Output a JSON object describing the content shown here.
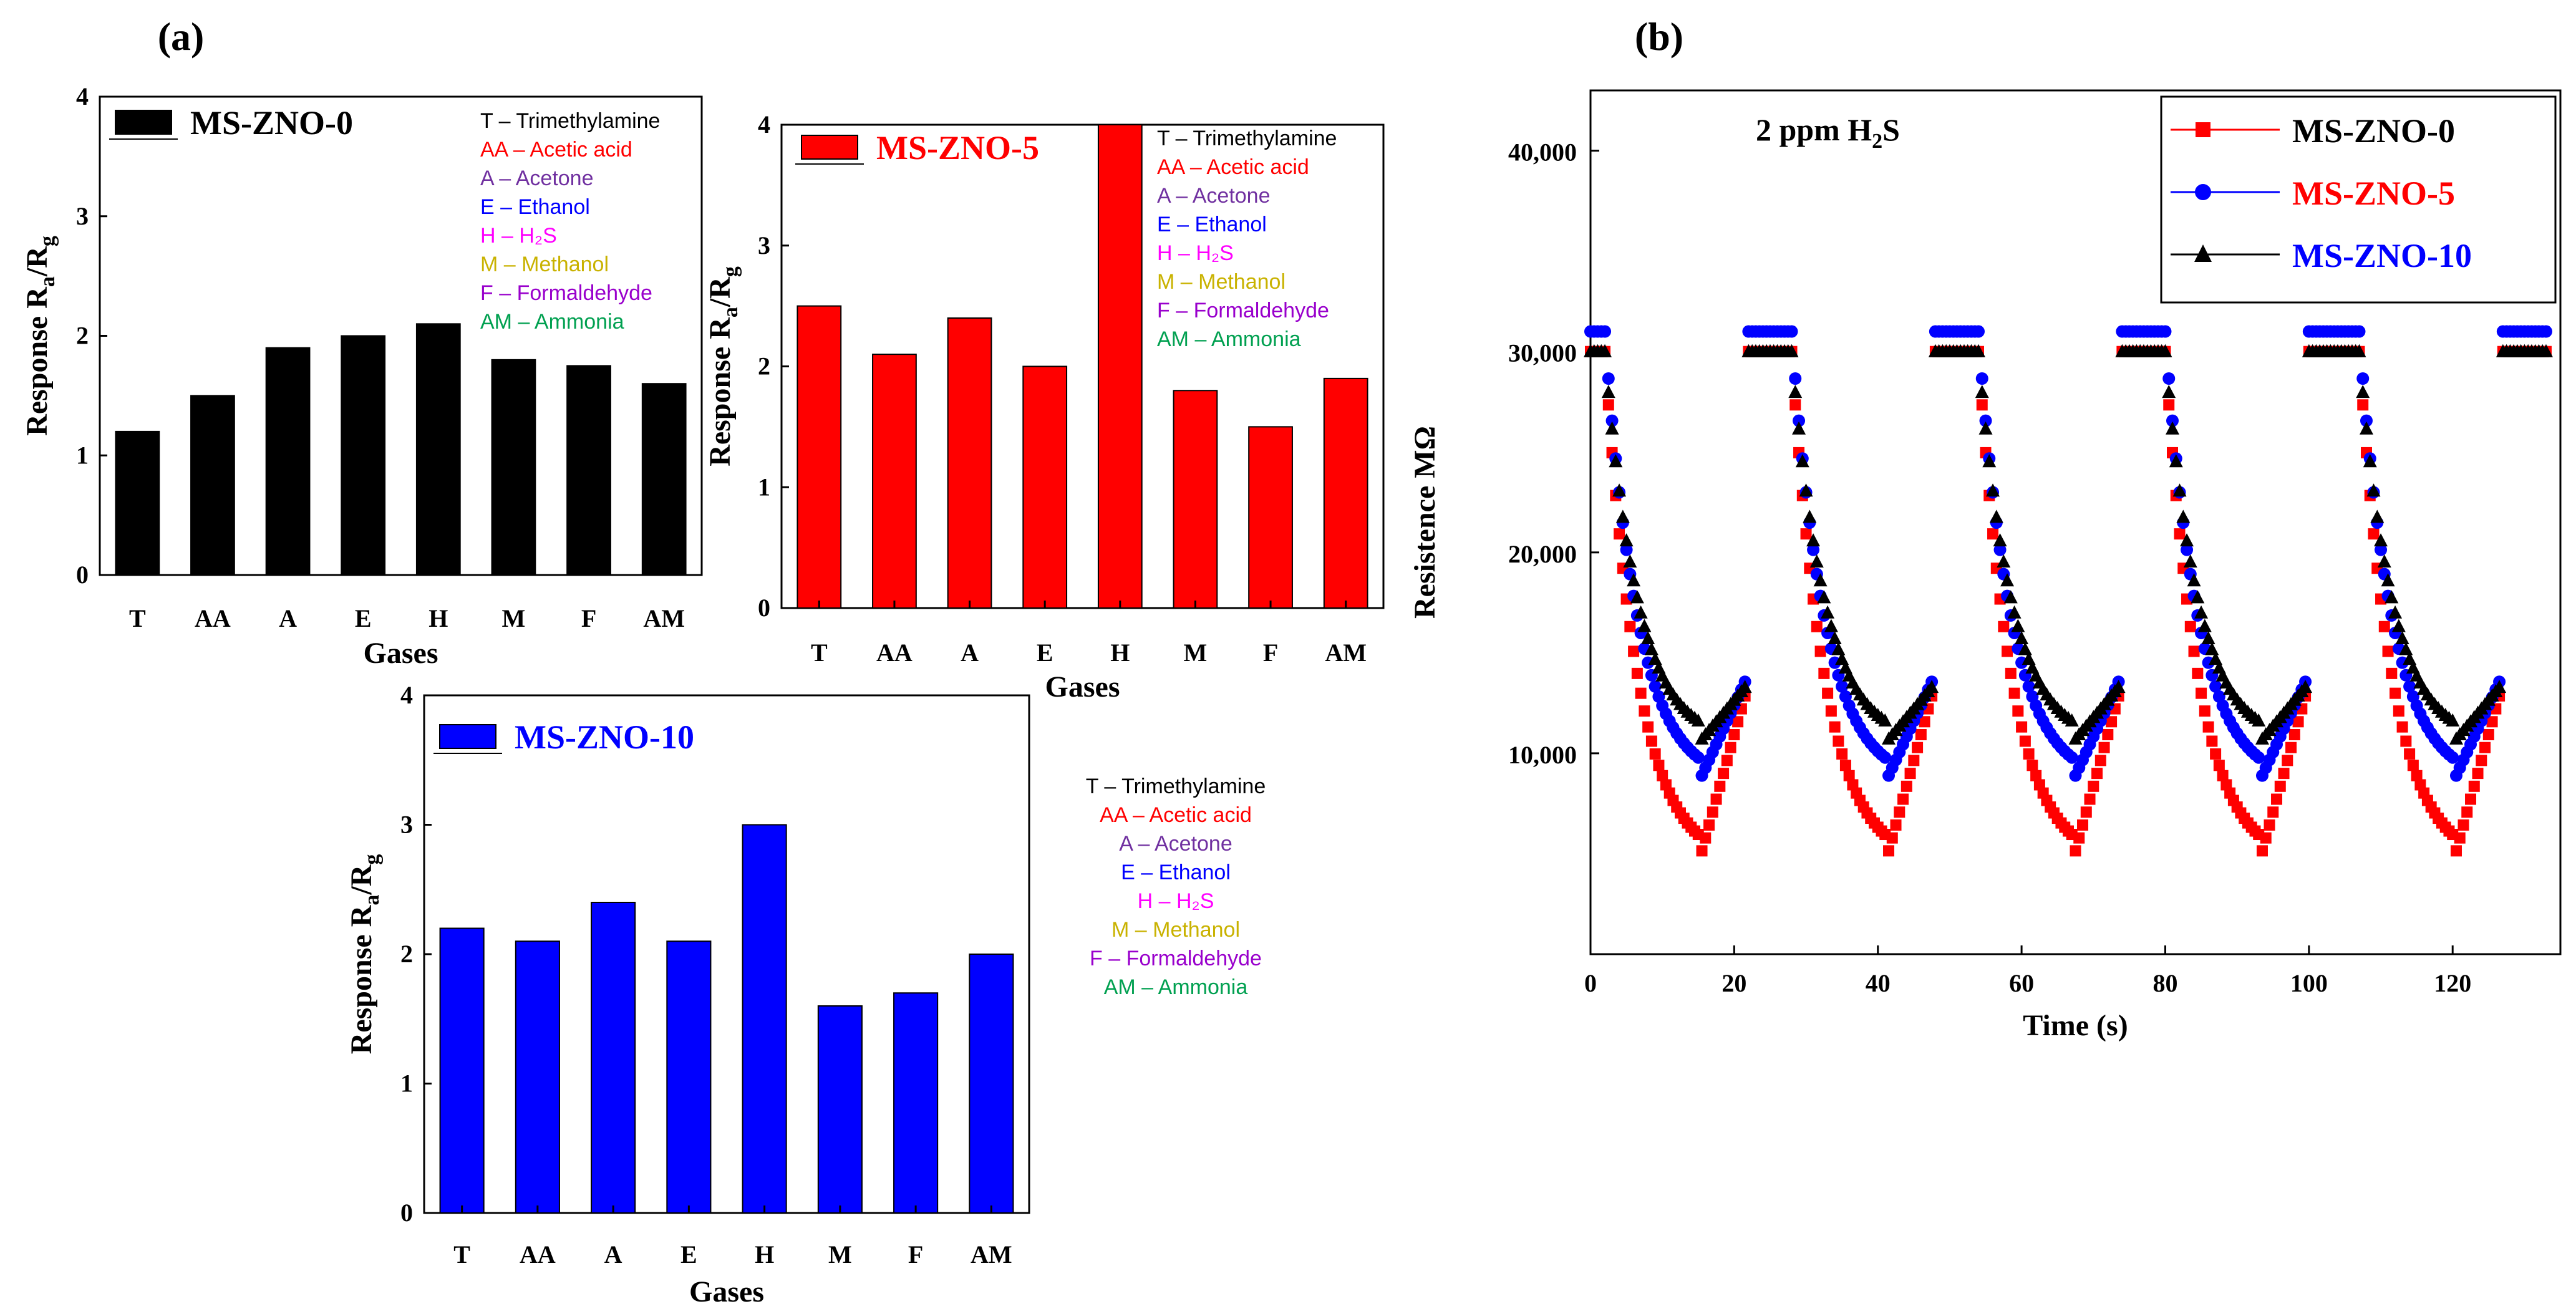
{
  "panels": {
    "a": "(a)",
    "b": "(b)"
  },
  "gas_key": {
    "entries": [
      {
        "text": "T – Trimethylamine",
        "color": "#000000"
      },
      {
        "text": "AA – Acetic acid",
        "color": "#ff0000"
      },
      {
        "text": "A – Acetone",
        "color": "#7030a0"
      },
      {
        "text": "E – Ethanol",
        "color": "#0000ff"
      },
      {
        "text": "H – H₂S",
        "color": "#ff00ff"
      },
      {
        "text": "M – Methanol",
        "color": "#c9b200"
      },
      {
        "text": "F – Formaldehyde",
        "color": "#9900cc"
      },
      {
        "text": "AM – Ammonia",
        "color": "#00a050"
      }
    ]
  },
  "chart_data": [
    {
      "type": "bar",
      "legend": "MS-ZNO-0",
      "color": "#000000",
      "categories": [
        "T",
        "AA",
        "A",
        "E",
        "H",
        "M",
        "F",
        "AM"
      ],
      "values": [
        1.2,
        1.5,
        1.9,
        2.0,
        2.1,
        1.8,
        1.75,
        1.6
      ],
      "xlabel": "Gases",
      "ylabel": "Response Ra/Rg",
      "ylabel_main": "Response R",
      "ylabel_sub1": "a",
      "ylabel_sub2": "g",
      "ylim": [
        0,
        4
      ],
      "yticks": [
        "0",
        "1",
        "2",
        "3",
        "4"
      ]
    },
    {
      "type": "bar",
      "legend": "MS-ZNO-5",
      "color": "#ff0000",
      "categories": [
        "T",
        "AA",
        "A",
        "E",
        "H",
        "M",
        "F",
        "AM"
      ],
      "values": [
        2.5,
        2.1,
        2.4,
        2.0,
        4.0,
        1.8,
        1.5,
        1.9
      ],
      "xlabel": "Gases",
      "ylabel": "Response Ra/Rg",
      "ylabel_main": "Response R",
      "ylabel_sub1": "a",
      "ylabel_sub2": "g",
      "ylim": [
        0,
        4
      ],
      "yticks": [
        "0",
        "1",
        "2",
        "3",
        "4"
      ]
    },
    {
      "type": "bar",
      "legend": "MS-ZNO-10",
      "color": "#0000ff",
      "categories": [
        "T",
        "AA",
        "A",
        "E",
        "H",
        "M",
        "F",
        "AM"
      ],
      "values": [
        2.2,
        2.1,
        2.4,
        2.1,
        3.0,
        1.6,
        1.7,
        2.0
      ],
      "xlabel": "Gases",
      "ylabel": "Response Ra/Rg",
      "ylabel_main": "Response R",
      "ylabel_sub1": "a",
      "ylabel_sub2": "g",
      "ylim": [
        0,
        4
      ],
      "yticks": [
        "0",
        "1",
        "2",
        "3",
        "4"
      ]
    },
    {
      "type": "scatter",
      "annotation": "2 ppm H2S",
      "annotation_main": "2 ppm H",
      "annotation_sub": "2",
      "annotation_tail": "S",
      "xlabel": "Time (s)",
      "ylabel": "Resistence MΩ",
      "xlim": [
        0,
        135
      ],
      "ylim": [
        0,
        43000
      ],
      "xticks": [
        0,
        20,
        40,
        60,
        80,
        100,
        120
      ],
      "yticks": [
        10000,
        20000,
        30000,
        40000
      ],
      "xtick_labels": [
        "0",
        "20",
        "40",
        "60",
        "80",
        "100",
        "120"
      ],
      "ytick_labels": [
        "10,000",
        "20,000",
        "30,000",
        "40,000"
      ],
      "legend_position": "top-right",
      "cycle_starts": [
        2,
        28,
        54,
        80,
        107
      ],
      "series": [
        {
          "name": "MS-ZNO-0",
          "color": "#ff0000",
          "marker": "square",
          "baseline": 30000,
          "minimum": 4500
        },
        {
          "name": "MS-ZNO-5",
          "color": "#0000ff",
          "marker": "circle",
          "baseline": 31000,
          "minimum": 8500
        },
        {
          "name": "MS-ZNO-10",
          "color": "#000000",
          "marker": "triangle",
          "baseline": 30000,
          "minimum": 10500
        }
      ]
    }
  ]
}
